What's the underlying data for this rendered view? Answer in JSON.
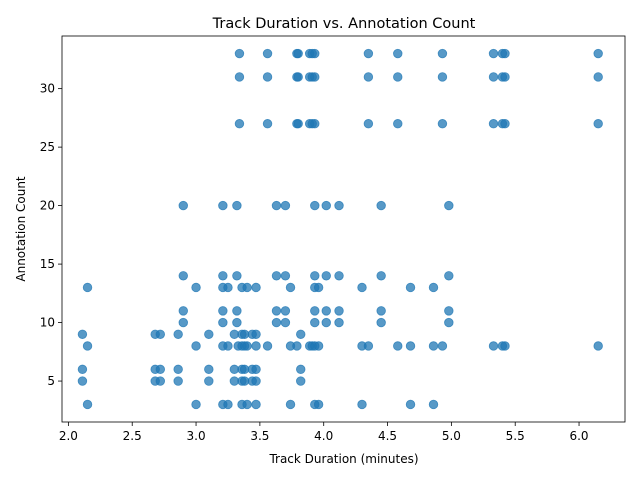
{
  "chart_data": {
    "type": "scatter",
    "title": "Track Duration vs. Annotation Count",
    "xlabel": "Track Duration (minutes)",
    "ylabel": "Annotation Count",
    "xlim": [
      1.95,
      6.36
    ],
    "ylim": [
      1.5,
      34.5
    ],
    "xticks": [
      "2.0",
      "2.5",
      "3.0",
      "3.5",
      "4.0",
      "4.5",
      "5.0",
      "5.5",
      "6.0"
    ],
    "xtick_values": [
      2.0,
      2.5,
      3.0,
      3.5,
      4.0,
      4.5,
      5.0,
      5.5,
      6.0
    ],
    "yticks": [
      "5",
      "10",
      "15",
      "20",
      "25",
      "30"
    ],
    "ytick_values": [
      5,
      10,
      15,
      20,
      25,
      30
    ],
    "grid": false,
    "marker_color": "#1f77b4",
    "marker_alpha": 0.75,
    "points": [
      [
        2.11,
        9
      ],
      [
        2.11,
        6
      ],
      [
        2.11,
        5
      ],
      [
        2.15,
        13
      ],
      [
        2.15,
        8
      ],
      [
        2.15,
        3
      ],
      [
        2.68,
        9
      ],
      [
        2.72,
        9
      ],
      [
        2.68,
        6
      ],
      [
        2.72,
        6
      ],
      [
        2.68,
        5
      ],
      [
        2.72,
        5
      ],
      [
        2.86,
        9
      ],
      [
        2.86,
        6
      ],
      [
        2.86,
        5
      ],
      [
        2.9,
        20
      ],
      [
        2.9,
        14
      ],
      [
        2.9,
        11
      ],
      [
        2.9,
        10
      ],
      [
        3.0,
        13
      ],
      [
        3.0,
        8
      ],
      [
        3.0,
        3
      ],
      [
        3.1,
        9
      ],
      [
        3.1,
        6
      ],
      [
        3.1,
        5
      ],
      [
        3.21,
        20
      ],
      [
        3.21,
        14
      ],
      [
        3.21,
        13
      ],
      [
        3.21,
        11
      ],
      [
        3.21,
        10
      ],
      [
        3.21,
        8
      ],
      [
        3.21,
        3
      ],
      [
        3.25,
        13
      ],
      [
        3.25,
        8
      ],
      [
        3.25,
        3
      ],
      [
        3.3,
        9
      ],
      [
        3.3,
        6
      ],
      [
        3.3,
        5
      ],
      [
        3.32,
        20
      ],
      [
        3.32,
        14
      ],
      [
        3.32,
        11
      ],
      [
        3.32,
        10
      ],
      [
        3.33,
        8
      ],
      [
        3.34,
        33
      ],
      [
        3.34,
        31
      ],
      [
        3.34,
        27
      ],
      [
        3.36,
        13
      ],
      [
        3.36,
        9
      ],
      [
        3.36,
        8
      ],
      [
        3.36,
        6
      ],
      [
        3.36,
        5
      ],
      [
        3.36,
        3
      ],
      [
        3.38,
        9
      ],
      [
        3.38,
        8
      ],
      [
        3.38,
        6
      ],
      [
        3.38,
        5
      ],
      [
        3.4,
        13
      ],
      [
        3.4,
        8
      ],
      [
        3.4,
        3
      ],
      [
        3.44,
        9
      ],
      [
        3.44,
        6
      ],
      [
        3.44,
        5
      ],
      [
        3.47,
        13
      ],
      [
        3.47,
        9
      ],
      [
        3.47,
        8
      ],
      [
        3.47,
        6
      ],
      [
        3.47,
        5
      ],
      [
        3.47,
        3
      ],
      [
        3.56,
        33
      ],
      [
        3.56,
        31
      ],
      [
        3.56,
        27
      ],
      [
        3.56,
        8
      ],
      [
        3.63,
        20
      ],
      [
        3.63,
        14
      ],
      [
        3.63,
        11
      ],
      [
        3.63,
        10
      ],
      [
        3.7,
        20
      ],
      [
        3.7,
        14
      ],
      [
        3.7,
        11
      ],
      [
        3.7,
        10
      ],
      [
        3.74,
        13
      ],
      [
        3.74,
        8
      ],
      [
        3.74,
        3
      ],
      [
        3.79,
        33
      ],
      [
        3.79,
        31
      ],
      [
        3.79,
        27
      ],
      [
        3.79,
        8
      ],
      [
        3.8,
        33
      ],
      [
        3.8,
        31
      ],
      [
        3.8,
        27
      ],
      [
        3.82,
        9
      ],
      [
        3.82,
        6
      ],
      [
        3.82,
        5
      ],
      [
        3.89,
        33
      ],
      [
        3.89,
        31
      ],
      [
        3.89,
        27
      ],
      [
        3.89,
        8
      ],
      [
        3.91,
        33
      ],
      [
        3.91,
        31
      ],
      [
        3.91,
        27
      ],
      [
        3.91,
        8
      ],
      [
        3.93,
        33
      ],
      [
        3.93,
        31
      ],
      [
        3.93,
        27
      ],
      [
        3.93,
        20
      ],
      [
        3.93,
        14
      ],
      [
        3.93,
        13
      ],
      [
        3.93,
        11
      ],
      [
        3.93,
        10
      ],
      [
        3.93,
        8
      ],
      [
        3.93,
        3
      ],
      [
        3.96,
        13
      ],
      [
        3.96,
        8
      ],
      [
        3.96,
        3
      ],
      [
        4.02,
        20
      ],
      [
        4.02,
        14
      ],
      [
        4.02,
        11
      ],
      [
        4.02,
        10
      ],
      [
        4.12,
        20
      ],
      [
        4.12,
        14
      ],
      [
        4.12,
        11
      ],
      [
        4.12,
        10
      ],
      [
        4.3,
        13
      ],
      [
        4.3,
        8
      ],
      [
        4.3,
        3
      ],
      [
        4.35,
        33
      ],
      [
        4.35,
        31
      ],
      [
        4.35,
        27
      ],
      [
        4.35,
        8
      ],
      [
        4.45,
        20
      ],
      [
        4.45,
        14
      ],
      [
        4.45,
        11
      ],
      [
        4.45,
        10
      ],
      [
        4.58,
        33
      ],
      [
        4.58,
        31
      ],
      [
        4.58,
        27
      ],
      [
        4.58,
        8
      ],
      [
        4.68,
        13
      ],
      [
        4.68,
        8
      ],
      [
        4.68,
        3
      ],
      [
        4.86,
        13
      ],
      [
        4.86,
        8
      ],
      [
        4.86,
        3
      ],
      [
        4.93,
        33
      ],
      [
        4.93,
        31
      ],
      [
        4.93,
        27
      ],
      [
        4.93,
        8
      ],
      [
        4.98,
        20
      ],
      [
        4.98,
        14
      ],
      [
        4.98,
        11
      ],
      [
        4.98,
        10
      ],
      [
        5.33,
        33
      ],
      [
        5.33,
        31
      ],
      [
        5.33,
        27
      ],
      [
        5.33,
        8
      ],
      [
        5.4,
        33
      ],
      [
        5.4,
        31
      ],
      [
        5.4,
        27
      ],
      [
        5.4,
        8
      ],
      [
        5.42,
        33
      ],
      [
        5.42,
        31
      ],
      [
        5.42,
        27
      ],
      [
        5.42,
        8
      ],
      [
        6.15,
        33
      ],
      [
        6.15,
        31
      ],
      [
        6.15,
        27
      ],
      [
        6.15,
        8
      ]
    ]
  }
}
